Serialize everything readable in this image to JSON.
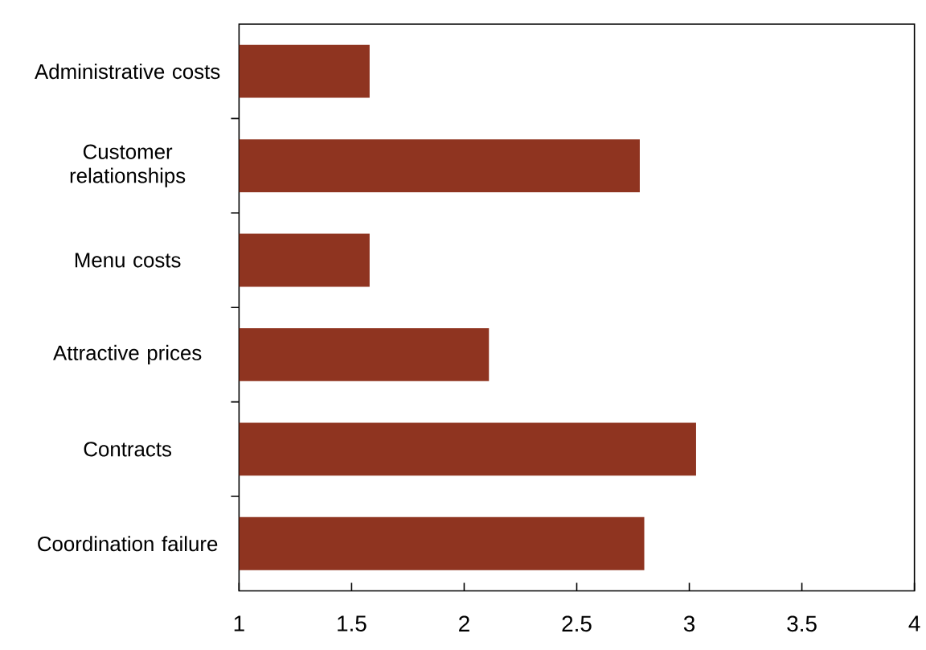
{
  "chart_data": {
    "type": "bar",
    "orientation": "horizontal",
    "categories": [
      "Administrative costs",
      "Customer relationships",
      "Menu costs",
      "Attractive prices",
      "Contracts",
      "Coordination failure"
    ],
    "values": [
      1.58,
      2.78,
      1.58,
      2.11,
      3.03,
      2.8
    ],
    "color": "#8f3420",
    "xlim": [
      1,
      4
    ],
    "xticks": [
      1,
      1.5,
      2,
      2.5,
      3,
      3.5,
      4
    ],
    "grid": false
  }
}
